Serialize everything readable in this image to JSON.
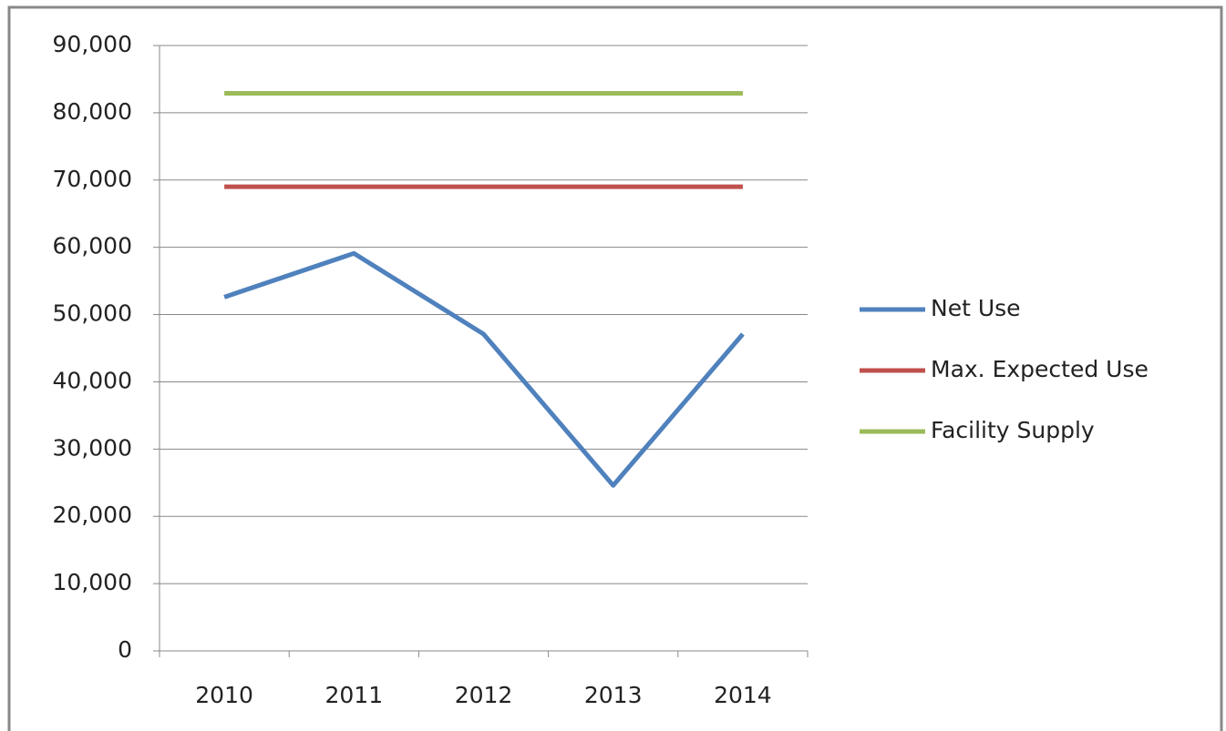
{
  "chart_data": {
    "type": "line",
    "categories": [
      "2010",
      "2011",
      "2012",
      "2013",
      "2014"
    ],
    "series": [
      {
        "name": "Net Use",
        "color": "#4f81bd",
        "values": [
          52600,
          59100,
          47100,
          24600,
          47100
        ]
      },
      {
        "name": "Max. Expected Use",
        "color": "#c0504d",
        "values": [
          69000,
          69000,
          69000,
          69000,
          69000
        ]
      },
      {
        "name": "Facility Supply",
        "color": "#9bbb59",
        "values": [
          82900,
          82900,
          82900,
          82900,
          82900
        ]
      }
    ],
    "ylim": [
      0,
      90000
    ],
    "yticks": [
      0,
      {
        "value": 10000,
        "label": "10,000"
      },
      {
        "value": 20000,
        "label": "20,000"
      },
      {
        "value": 30000,
        "label": "30,000"
      },
      {
        "value": 40000,
        "label": "40,000"
      },
      {
        "value": 50000,
        "label": "50,000"
      },
      {
        "value": 60000,
        "label": "60,000"
      },
      {
        "value": 70000,
        "label": "70,000"
      },
      {
        "value": 80000,
        "label": "80,000"
      },
      {
        "value": 90000,
        "label": "90,000"
      }
    ],
    "grid": true,
    "legend": "right"
  }
}
